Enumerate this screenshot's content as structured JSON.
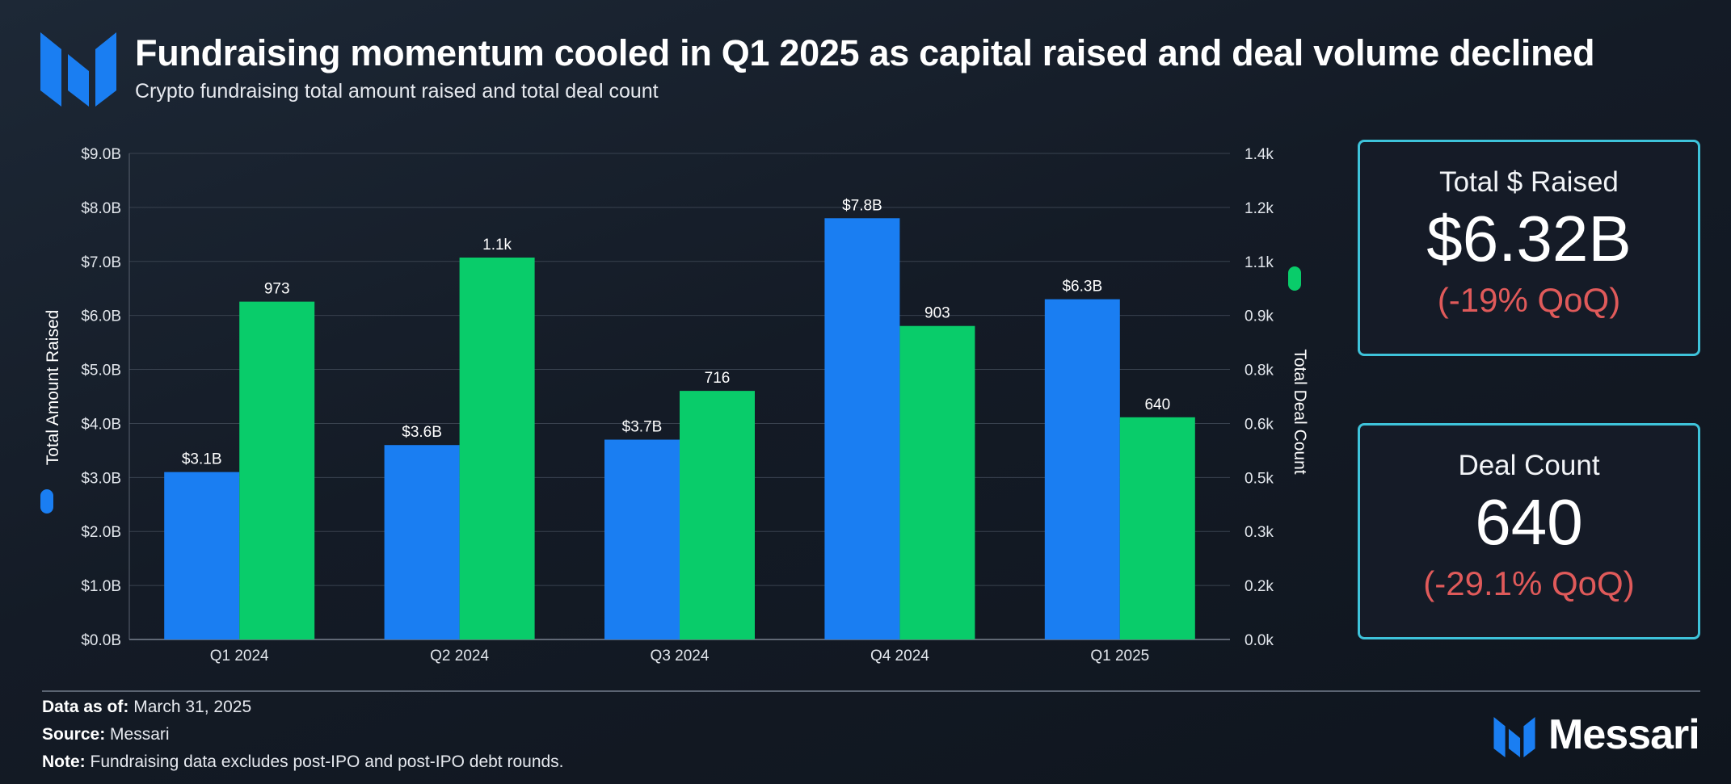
{
  "header": {
    "title": "Fundraising momentum cooled in Q1 2025 as capital raised and deal volume declined",
    "subtitle": "Crypto fundraising total amount raised and total deal count"
  },
  "chart_data": {
    "type": "bar",
    "categories": [
      "Q1 2024",
      "Q2 2024",
      "Q3 2024",
      "Q4 2024",
      "Q1 2025"
    ],
    "series": [
      {
        "name": "Total Amount Raised",
        "axis": "left",
        "color": "#1a7ef2",
        "values": [
          3.1,
          3.6,
          3.7,
          7.8,
          6.3
        ],
        "labels": [
          "$3.1B",
          "$3.6B",
          "$3.7B",
          "$7.8B",
          "$6.3B"
        ]
      },
      {
        "name": "Total Deal Count",
        "axis": "right",
        "color": "#09cc6a",
        "values": [
          973,
          1100,
          716,
          903,
          640
        ],
        "labels": [
          "973",
          "1.1k",
          "716",
          "903",
          "640"
        ]
      }
    ],
    "ylabel": "Total Amount Raised",
    "y2label": "Total Deal Count",
    "ylim": [
      0,
      9
    ],
    "y2lim": [
      0,
      1400
    ],
    "yticks": [
      "$0.0B",
      "$1.0B",
      "$2.0B",
      "$3.0B",
      "$4.0B",
      "$5.0B",
      "$6.0B",
      "$7.0B",
      "$8.0B",
      "$9.0B"
    ],
    "y2ticks": [
      "0.0k",
      "0.2k",
      "0.3k",
      "0.5k",
      "0.6k",
      "0.8k",
      "0.9k",
      "1.1k",
      "1.2k",
      "1.4k"
    ],
    "grid": true
  },
  "kpis": {
    "raised": {
      "label": "Total $ Raised",
      "value": "$6.32B",
      "change": "(-19% QoQ)"
    },
    "deals": {
      "label": "Deal Count",
      "value": "640",
      "change": "(-29.1% QoQ)"
    }
  },
  "footer": {
    "data_as_of_label": "Data as of:",
    "data_as_of_value": "March 31, 2025",
    "source_label": "Source:",
    "source_value": "Messari",
    "note_label": "Note:",
    "note_value": "Fundraising data excludes post-IPO and post-IPO debt rounds.",
    "brand": "Messari"
  },
  "colors": {
    "accent_blue": "#1a7ef2",
    "accent_green": "#09cc6a",
    "kpi_border": "#3ec3da",
    "negative": "#e05a5a"
  }
}
